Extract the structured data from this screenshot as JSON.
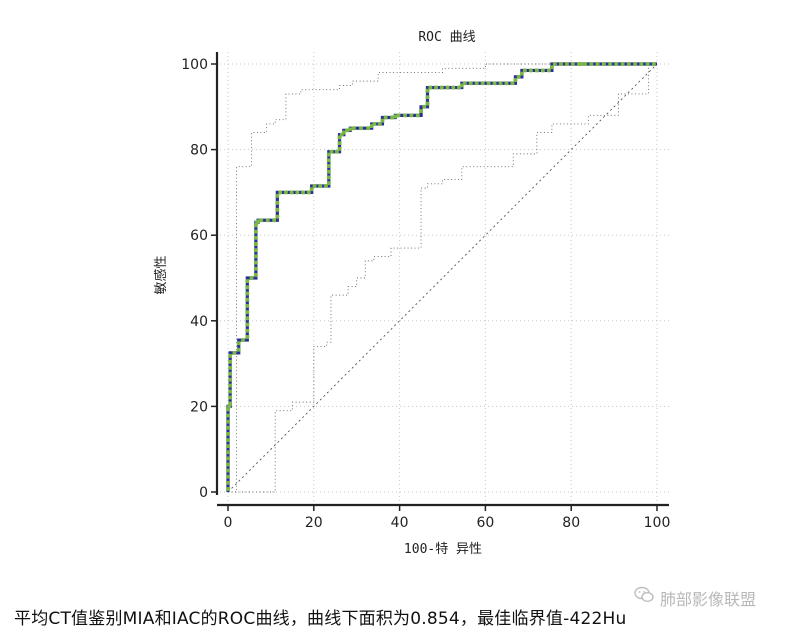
{
  "chart_data": {
    "type": "line",
    "title": "ROC 曲线",
    "xlabel": "100-特 异性",
    "ylabel": "敏感性",
    "xlim": [
      0,
      100
    ],
    "ylim": [
      0,
      100
    ],
    "xticks": [
      "0",
      "20",
      "40",
      "60",
      "80",
      "100"
    ],
    "yticks": [
      "0",
      "20",
      "40",
      "60",
      "80",
      "100"
    ],
    "grid": true,
    "legend": "none",
    "series": [
      {
        "style": "step",
        "color": "#2c2c9e",
        "marker_color": "#7ab648",
        "x": [
          0,
          0,
          0.5,
          0.5,
          2.5,
          2.5,
          4.5,
          4.5,
          6.5,
          6.5,
          7,
          7,
          11.5,
          11.5,
          19.5,
          19.5,
          23.5,
          23.5,
          26,
          26,
          27,
          27,
          28.5,
          28.5,
          33.5,
          33.5,
          36,
          36,
          39,
          39,
          45,
          45,
          46.5,
          46.5,
          54.5,
          54.5,
          67,
          67,
          68.5,
          68.5,
          75.5,
          75.5,
          82.5,
          82.5,
          100
        ],
        "y": [
          0,
          20,
          20,
          32.5,
          32.5,
          35.5,
          35.5,
          50,
          50,
          63,
          63,
          63.5,
          63.5,
          70,
          70,
          71.5,
          71.5,
          79.5,
          79.5,
          83.5,
          83.5,
          84.5,
          84.5,
          85,
          85,
          86,
          86,
          87.5,
          87.5,
          88,
          88,
          90,
          90,
          94.5,
          94.5,
          95.5,
          95.5,
          97,
          97,
          98.5,
          98.5,
          100,
          100,
          100,
          100
        ]
      }
    ],
    "confidence_upper": {
      "style": "dotted",
      "x": [
        0,
        2,
        2,
        5.5,
        5.5,
        9,
        9,
        11,
        11,
        13.5,
        13.5,
        17,
        17,
        26,
        26,
        29,
        29,
        35,
        35,
        50,
        50,
        60,
        60,
        70,
        70,
        82.5,
        82.5,
        100
      ],
      "y": [
        0,
        0,
        76,
        76,
        84,
        84,
        86,
        86,
        87,
        87,
        93,
        93,
        94,
        94,
        95,
        95,
        96,
        96,
        98,
        98,
        99,
        99,
        100,
        100,
        100,
        100,
        100,
        100
      ]
    },
    "confidence_lower": {
      "style": "dotted",
      "x": [
        0,
        11,
        11,
        15,
        15,
        20,
        20,
        23,
        23,
        24,
        24,
        28,
        28,
        30,
        30,
        32,
        32,
        34,
        34,
        38,
        38,
        45,
        45,
        46.5,
        46.5,
        50,
        50,
        54.5,
        54.5,
        66.5,
        66.5,
        72,
        72,
        75.5,
        75.5,
        84,
        84,
        91,
        91,
        98,
        98,
        100
      ],
      "y": [
        0,
        0,
        19,
        19,
        21,
        21,
        34,
        34,
        35,
        35,
        46,
        46,
        48,
        48,
        50,
        50,
        54,
        54,
        55,
        55,
        57,
        57,
        71,
        71,
        72,
        72,
        73,
        73,
        76,
        76,
        79,
        79,
        84,
        84,
        86,
        86,
        88,
        88,
        93,
        93,
        100,
        100
      ]
    },
    "reference_line": {
      "x": [
        0,
        100
      ],
      "y": [
        0,
        100
      ],
      "style": "dashed"
    }
  },
  "caption": "平均CT值鉴别MIA和IAC的ROC曲线，曲线下面积为0.854，最佳临界值-422Hu",
  "watermark": "肺部影像联盟",
  "watermark_icon": "wechat-icon"
}
